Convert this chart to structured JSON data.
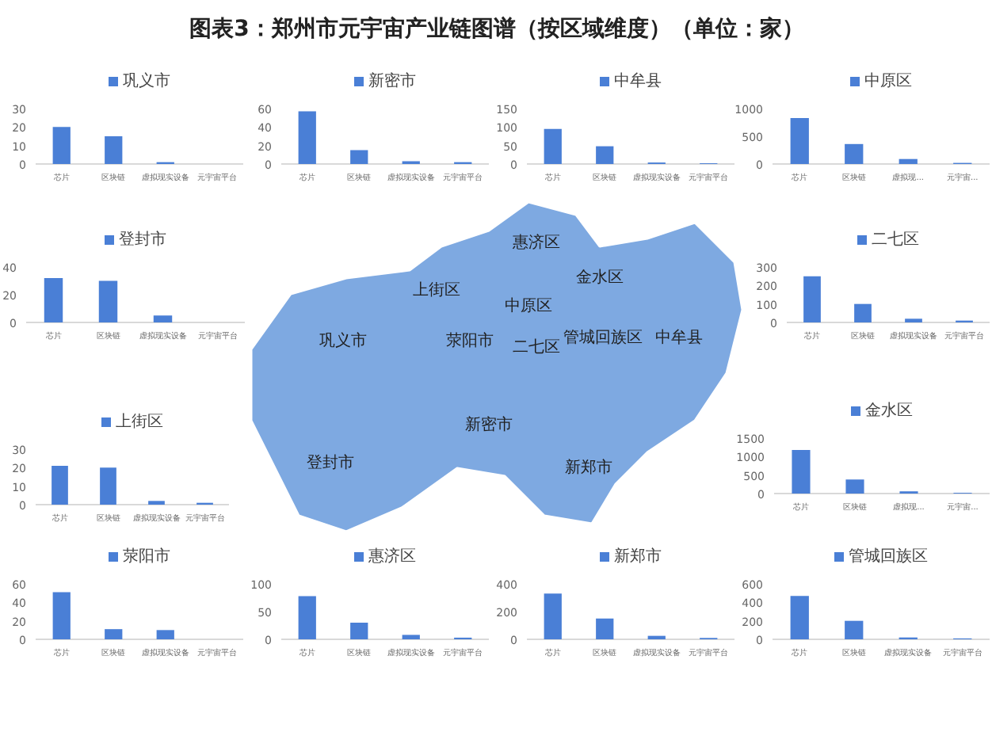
{
  "chart_data": [
    {
      "type": "other",
      "title": "图表3：郑州市元宇宙产业链图谱（按区域维度）（单位：家）",
      "color": "#7ea9e1",
      "annotations": [
        "惠济区",
        "上街区",
        "金水区",
        "中原区",
        "巩义市",
        "荥阳市",
        "二七区",
        "管城回族区",
        "中牟县",
        "新密市",
        "登封市",
        "新郑市"
      ]
    },
    {
      "type": "bar",
      "categories": [
        "芯片",
        "区块链",
        "虚拟现实设备",
        "元宇宙平台"
      ],
      "series": [
        {
          "name": "巩义市",
          "color": "#4a7fd6",
          "values": [
            20,
            15,
            1,
            0
          ]
        }
      ],
      "ylim": [
        0,
        30
      ],
      "yticks": [
        0,
        10,
        20,
        30
      ],
      "legend": "top"
    },
    {
      "type": "bar",
      "categories": [
        "芯片",
        "区块链",
        "虚拟现实设备",
        "元宇宙平台"
      ],
      "series": [
        {
          "name": "新密市",
          "color": "#4a7fd6",
          "values": [
            57,
            15,
            3,
            2
          ]
        }
      ],
      "ylim": [
        0,
        60
      ],
      "yticks": [
        0,
        20,
        40,
        60
      ],
      "legend": "top"
    },
    {
      "type": "bar",
      "categories": [
        "芯片",
        "区块链",
        "虚拟现实设备",
        "元宇宙平台"
      ],
      "series": [
        {
          "name": "中牟县",
          "color": "#4a7fd6",
          "values": [
            95,
            48,
            4,
            2
          ]
        }
      ],
      "ylim": [
        0,
        150
      ],
      "yticks": [
        0,
        50,
        100,
        150
      ],
      "legend": "top"
    },
    {
      "type": "bar",
      "categories": [
        "芯片",
        "区块链",
        "虚拟现...",
        "元宇宙..."
      ],
      "series": [
        {
          "name": "中原区",
          "color": "#4a7fd6",
          "values": [
            830,
            360,
            90,
            20
          ]
        }
      ],
      "ylim": [
        0,
        1000
      ],
      "yticks": [
        0,
        500,
        1000
      ],
      "legend": "top"
    },
    {
      "type": "bar",
      "categories": [
        "芯片",
        "区块链",
        "虚拟现实设备",
        "元宇宙平台"
      ],
      "series": [
        {
          "name": "登封市",
          "color": "#4a7fd6",
          "values": [
            32,
            30,
            5,
            0
          ]
        }
      ],
      "ylim": [
        0,
        40
      ],
      "yticks": [
        0,
        20,
        40
      ],
      "legend": "top"
    },
    {
      "type": "bar",
      "categories": [
        "芯片",
        "区块链",
        "虚拟现实设备",
        "元宇宙平台"
      ],
      "series": [
        {
          "name": "二七区",
          "color": "#4a7fd6",
          "values": [
            250,
            100,
            20,
            10
          ]
        }
      ],
      "ylim": [
        0,
        300
      ],
      "yticks": [
        0,
        100,
        200,
        300
      ],
      "legend": "top"
    },
    {
      "type": "bar",
      "categories": [
        "芯片",
        "区块链",
        "虚拟现实设备",
        "元宇宙平台"
      ],
      "series": [
        {
          "name": "上街区",
          "color": "#4a7fd6",
          "values": [
            21,
            20,
            2,
            1
          ]
        }
      ],
      "ylim": [
        0,
        30
      ],
      "yticks": [
        0,
        10,
        20,
        30
      ],
      "legend": "top"
    },
    {
      "type": "bar",
      "categories": [
        "芯片",
        "区块链",
        "虚拟现...",
        "元宇宙..."
      ],
      "series": [
        {
          "name": "金水区",
          "color": "#4a7fd6",
          "values": [
            1180,
            380,
            60,
            20
          ]
        }
      ],
      "ylim": [
        0,
        1500
      ],
      "yticks": [
        0,
        500,
        1000,
        1500
      ],
      "legend": "top"
    },
    {
      "type": "bar",
      "categories": [
        "芯片",
        "区块链",
        "虚拟现实设备",
        "元宇宙平台"
      ],
      "series": [
        {
          "name": "荥阳市",
          "color": "#4a7fd6",
          "values": [
            51,
            11,
            10,
            0
          ]
        }
      ],
      "ylim": [
        0,
        60
      ],
      "yticks": [
        0,
        20,
        40,
        60
      ],
      "legend": "top"
    },
    {
      "type": "bar",
      "categories": [
        "芯片",
        "区块链",
        "虚拟现实设备",
        "元宇宙平台"
      ],
      "series": [
        {
          "name": "惠济区",
          "color": "#4a7fd6",
          "values": [
            78,
            30,
            8,
            3
          ]
        }
      ],
      "ylim": [
        0,
        100
      ],
      "yticks": [
        0,
        50,
        100
      ],
      "legend": "top"
    },
    {
      "type": "bar",
      "categories": [
        "芯片",
        "区块链",
        "虚拟现实设备",
        "元宇宙平台"
      ],
      "series": [
        {
          "name": "新郑市",
          "color": "#4a7fd6",
          "values": [
            330,
            150,
            25,
            10
          ]
        }
      ],
      "ylim": [
        0,
        400
      ],
      "yticks": [
        0,
        200,
        400
      ],
      "legend": "top"
    },
    {
      "type": "bar",
      "categories": [
        "芯片",
        "区块链",
        "虚拟现实设备",
        "元宇宙平台"
      ],
      "series": [
        {
          "name": "管城回族区",
          "color": "#4a7fd6",
          "values": [
            470,
            200,
            20,
            10
          ]
        }
      ],
      "ylim": [
        0,
        600
      ],
      "yticks": [
        0,
        200,
        400,
        600
      ],
      "legend": "top"
    }
  ]
}
